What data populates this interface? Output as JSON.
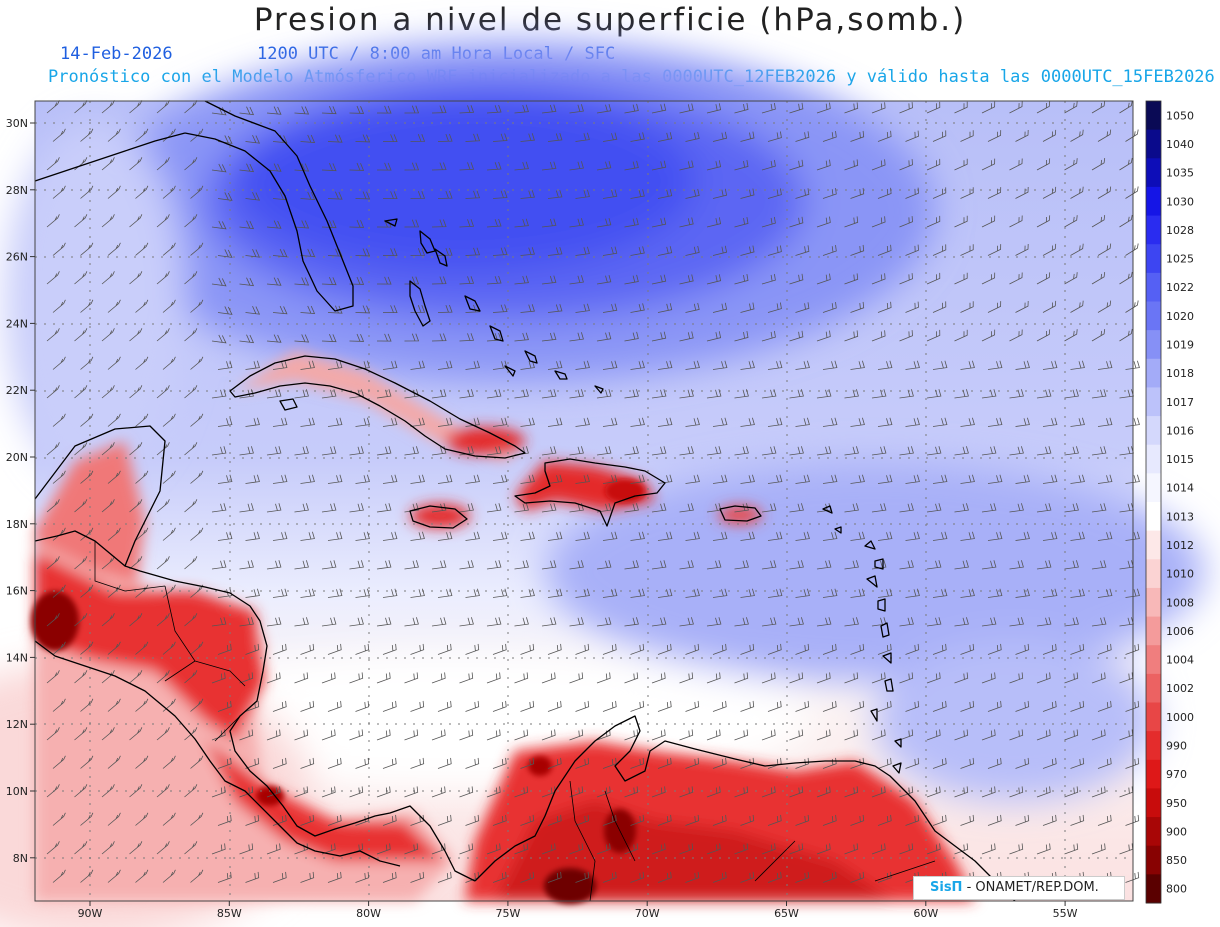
{
  "header": {
    "title": "Presion a nivel de superficie (hPa,somb.)",
    "date": "14-Feb-2026",
    "time": "1200 UTC / 8:00 am Hora Local / SFC",
    "forecast": "Pronóstico con el Modelo Atmósferico WRF inicializado a las 0000UTC_12FEB2026 y válido hasta las  0000UTC_15FEB2026"
  },
  "map": {
    "lon_range": [
      -92,
      -52.6
    ],
    "lat_range": [
      6.8,
      30.7
    ],
    "lat_ticks": [
      "30N",
      "28N",
      "26N",
      "24N",
      "22N",
      "20N",
      "18N",
      "16N",
      "14N",
      "12N",
      "10N",
      "8N"
    ],
    "lon_ticks": [
      "90W",
      "85W",
      "80W",
      "75W",
      "70W",
      "65W",
      "60W",
      "55W"
    ],
    "colors": {
      "high": "#3d4ef2",
      "mid": "#9aa6f6",
      "neutral": "#f6f6ff",
      "low": "#f08080",
      "land_low": "#e8282a",
      "land_deep": "#8b0000"
    }
  },
  "colorbar": {
    "levels": [
      "1050",
      "1040",
      "1035",
      "1030",
      "1028",
      "1025",
      "1022",
      "1020",
      "1019",
      "1018",
      "1017",
      "1016",
      "1015",
      "1014",
      "1013",
      "1012",
      "1010",
      "1008",
      "1006",
      "1004",
      "1002",
      "1000",
      "990",
      "970",
      "950",
      "900",
      "850",
      "800"
    ],
    "colors": [
      "#0a0a55",
      "#0a0a8c",
      "#0d0db8",
      "#1515e6",
      "#2a2cf0",
      "#3d45f2",
      "#5560f4",
      "#6a75f5",
      "#8690f6",
      "#a3abf8",
      "#bcc2fa",
      "#d4d8fc",
      "#e7e9fe",
      "#f5f6ff",
      "#ffffff",
      "#fde8e8",
      "#fbd3d3",
      "#f8b8b8",
      "#f49b9b",
      "#f07e7e",
      "#ec6262",
      "#e84646",
      "#e42c2c",
      "#de1818",
      "#c80c0c",
      "#a80606",
      "#880202",
      "#5a0000"
    ]
  },
  "credit": {
    "logo_text": "SisΠ",
    "text": "- ONAMET/REP.DOM."
  }
}
